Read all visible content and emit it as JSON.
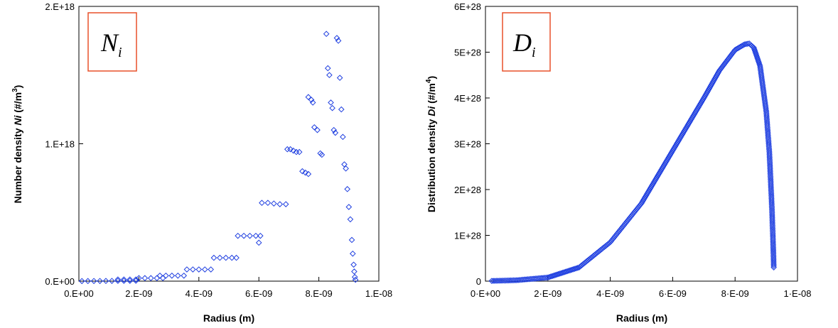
{
  "chart_data": [
    {
      "type": "scatter",
      "badge": {
        "symbol": "N",
        "subscript": "i"
      },
      "xlabel": "Radius (m)",
      "ylabel": {
        "prefix": "Number density ",
        "var": "Ni",
        "units": "  (#/m",
        "exp": "3",
        "close": ")"
      },
      "xlim": [
        0,
        1e-08
      ],
      "ylim": [
        0,
        2e+18
      ],
      "xticks": [
        0,
        2e-09,
        4e-09,
        6e-09,
        8e-09,
        1e-08
      ],
      "xtick_labels": [
        "0.E+00",
        "2.E-09",
        "4.E-09",
        "6.E-09",
        "8.E-09",
        "1.E-08"
      ],
      "yticks": [
        0,
        1e+18,
        2e+18
      ],
      "ytick_labels": [
        "0.E+00",
        "1.E+18",
        "2.E+18"
      ],
      "grid": false,
      "marker": "diamond-open",
      "color": "#1f3fe0",
      "series": [
        {
          "points": [
            [
              1e-10,
              600000000000000.0
            ],
            [
              3e-10,
              800000000000000.0
            ],
            [
              5e-10,
              1000000000000000.0
            ],
            [
              7e-10,
              1200000000000000.0
            ],
            [
              9e-10,
              1500000000000000.0
            ],
            [
              1.1e-09,
              1800000000000000.0
            ],
            [
              1.3e-09,
              2000000000000000.0
            ],
            [
              1.5e-09,
              2200000000000000.0
            ],
            [
              1.7e-09,
              2500000000000000.0
            ],
            [
              1.9e-09,
              2700000000000000.0
            ],
            [
              1.3e-09,
              1.2e+16
            ],
            [
              1.5e-09,
              1.2e+16
            ],
            [
              1.7e-09,
              1.2e+16
            ],
            [
              1.9e-09,
              1.2e+16
            ],
            [
              2e-09,
              2.2e+16
            ],
            [
              2.2e-09,
              2.2e+16
            ],
            [
              2.4e-09,
              2.2e+16
            ],
            [
              2.6e-09,
              2.2e+16
            ],
            [
              2.8e-09,
              2.2e+16
            ],
            [
              2.7e-09,
              4e+16
            ],
            [
              2.9e-09,
              4e+16
            ],
            [
              3.1e-09,
              4e+16
            ],
            [
              3.3e-09,
              4e+16
            ],
            [
              3.5e-09,
              4e+16
            ],
            [
              3.6e-09,
              8.5e+16
            ],
            [
              3.8e-09,
              8.5e+16
            ],
            [
              4e-09,
              8.5e+16
            ],
            [
              4.2e-09,
              8.5e+16
            ],
            [
              4.4e-09,
              8.5e+16
            ],
            [
              4.5e-09,
              1.7e+17
            ],
            [
              4.7e-09,
              1.7e+17
            ],
            [
              4.9e-09,
              1.7e+17
            ],
            [
              5.1e-09,
              1.7e+17
            ],
            [
              5.25e-09,
              1.7e+17
            ],
            [
              5.3e-09,
              3.3e+17
            ],
            [
              5.5e-09,
              3.3e+17
            ],
            [
              5.7e-09,
              3.3e+17
            ],
            [
              5.9e-09,
              3.3e+17
            ],
            [
              6.05e-09,
              3.3e+17
            ],
            [
              6e-09,
              2.8e+17
            ],
            [
              6.1e-09,
              5.7e+17
            ],
            [
              6.3e-09,
              5.7e+17
            ],
            [
              6.5e-09,
              5.65e+17
            ],
            [
              6.7e-09,
              5.6e+17
            ],
            [
              6.9e-09,
              5.6e+17
            ],
            [
              6.95e-09,
              9.6e+17
            ],
            [
              7.05e-09,
              9.6e+17
            ],
            [
              7.15e-09,
              9.5e+17
            ],
            [
              7.25e-09,
              9.4e+17
            ],
            [
              7.35e-09,
              9.4e+17
            ],
            [
              7.45e-09,
              8e+17
            ],
            [
              7.55e-09,
              7.9e+17
            ],
            [
              7.65e-09,
              7.8e+17
            ],
            [
              7.65e-09,
              1.34e+18
            ],
            [
              7.75e-09,
              1.32e+18
            ],
            [
              7.8e-09,
              1.3e+18
            ],
            [
              7.85e-09,
              1.12e+18
            ],
            [
              7.95e-09,
              1.1e+18
            ],
            [
              8.05e-09,
              9.3e+17
            ],
            [
              8.1e-09,
              9.2e+17
            ],
            [
              8.25e-09,
              1.8e+18
            ],
            [
              8.3e-09,
              1.55e+18
            ],
            [
              8.35e-09,
              1.5e+18
            ],
            [
              8.4e-09,
              1.3e+18
            ],
            [
              8.45e-09,
              1.26e+18
            ],
            [
              8.5e-09,
              1.1e+18
            ],
            [
              8.55e-09,
              1.08e+18
            ],
            [
              8.6e-09,
              1.77e+18
            ],
            [
              8.65e-09,
              1.75e+18
            ],
            [
              8.7e-09,
              1.48e+18
            ],
            [
              8.75e-09,
              1.25e+18
            ],
            [
              8.8e-09,
              1.05e+18
            ],
            [
              8.85e-09,
              8.5e+17
            ],
            [
              8.9e-09,
              8.2e+17
            ],
            [
              8.95e-09,
              6.7e+17
            ],
            [
              9e-09,
              5.4e+17
            ],
            [
              9.05e-09,
              4.5e+17
            ],
            [
              9.1e-09,
              3e+17
            ],
            [
              9.13e-09,
              2e+17
            ],
            [
              9.16e-09,
              1.2e+17
            ],
            [
              9.18e-09,
              7e+16
            ],
            [
              9.2e-09,
              3e+16
            ],
            [
              9.22e-09,
              1e+16
            ]
          ]
        }
      ]
    },
    {
      "type": "scatter",
      "badge": {
        "symbol": "D",
        "subscript": "i"
      },
      "xlabel": "Radius (m)",
      "ylabel": {
        "prefix": "Distribution density ",
        "var": "Di",
        "units": "  (#/m",
        "exp": "4",
        "close": ")"
      },
      "xlim": [
        0,
        1e-08
      ],
      "ylim": [
        0,
        6e+28
      ],
      "xticks": [
        0,
        2e-09,
        4e-09,
        6e-09,
        8e-09,
        1e-08
      ],
      "xtick_labels": [
        "0·E+00",
        "2·E-09",
        "4·E-09",
        "6·E-09",
        "8·E-09",
        "1·E-08"
      ],
      "yticks": [
        0,
        1e+28,
        2e+28,
        3e+28,
        4e+28,
        5e+28,
        6e+28
      ],
      "ytick_labels": [
        "0",
        "1E+28",
        "2E+28",
        "3E+28",
        "4E+28",
        "5E+28",
        "6E+28"
      ],
      "grid": false,
      "marker": "diamond-open",
      "color": "#1f3fe0",
      "series": [
        {
          "points": [
            [
              2e-10,
              5e+25
            ],
            [
              1e-09,
              2e+26
            ],
            [
              2e-09,
              8e+26
            ],
            [
              3e-09,
              3e+27
            ],
            [
              4e-09,
              8.5e+27
            ],
            [
              5e-09,
              1.7e+28
            ],
            [
              6e-09,
              2.85e+28
            ],
            [
              7e-09,
              4e+28
            ],
            [
              7.5e-09,
              4.6e+28
            ],
            [
              8e-09,
              5.05e+28
            ],
            [
              8.3e-09,
              5.17e+28
            ],
            [
              8.45e-09,
              5.19e+28
            ],
            [
              8.6e-09,
              5.1e+28
            ],
            [
              8.8e-09,
              4.7e+28
            ],
            [
              9e-09,
              3.7e+28
            ],
            [
              9.1e-09,
              2.8e+28
            ],
            [
              9.18e-09,
              1.6e+28
            ],
            [
              9.22e-09,
              8e+27
            ],
            [
              9.24e-09,
              3e+27
            ]
          ]
        }
      ]
    }
  ]
}
